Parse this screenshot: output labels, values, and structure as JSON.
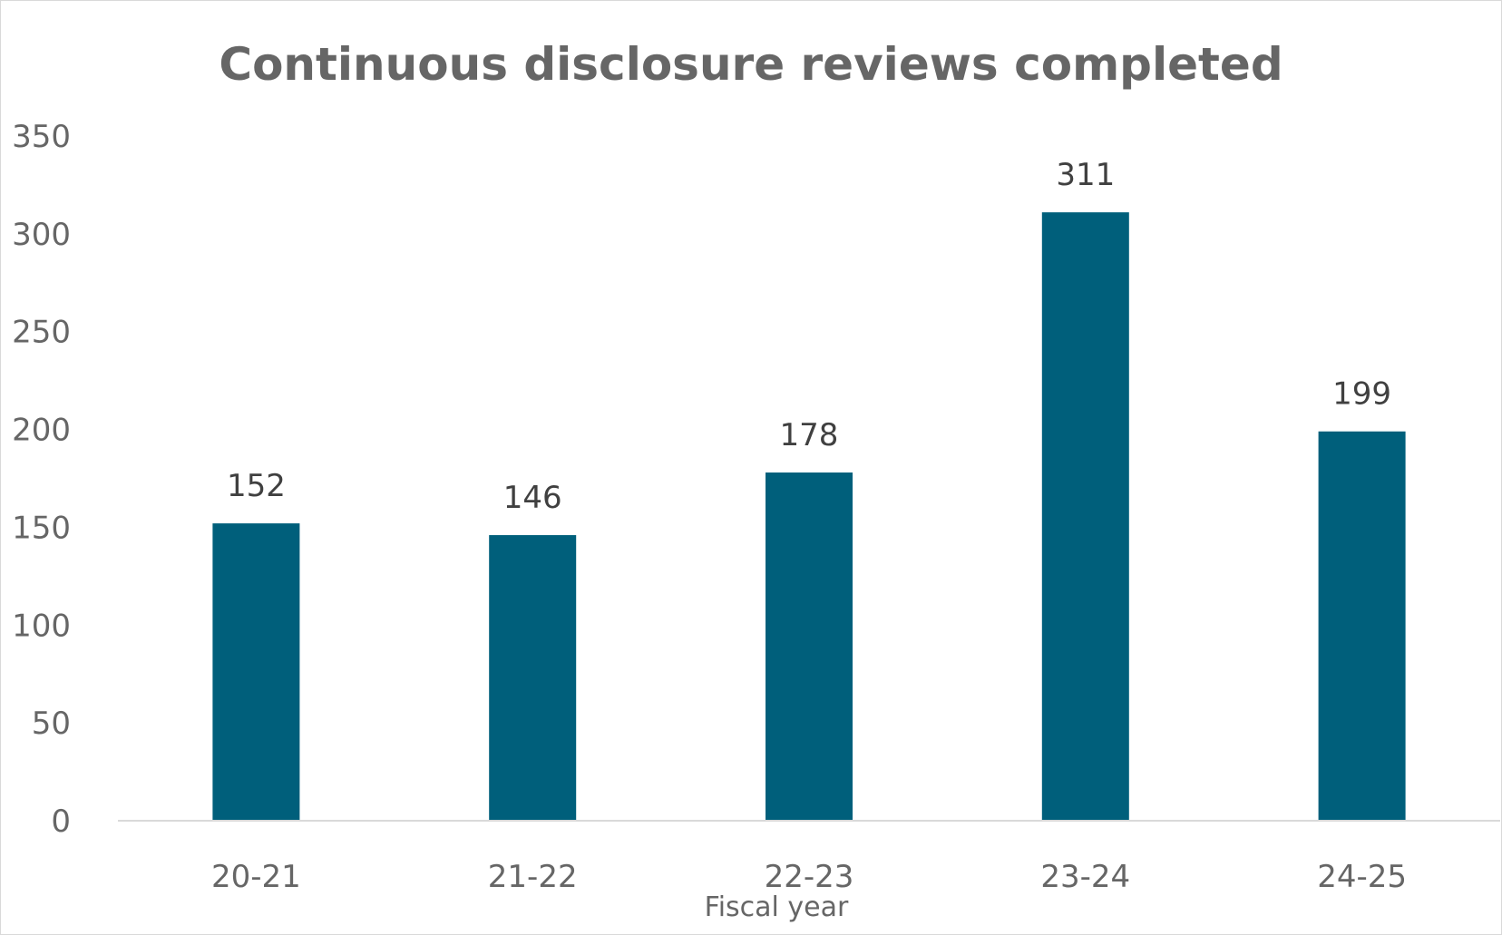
{
  "chart_data": {
    "type": "bar",
    "title": "Continuous disclosure reviews completed",
    "xlabel": "Fiscal year",
    "ylabel": "",
    "categories": [
      "20-21",
      "21-22",
      "22-23",
      "23-24",
      "24-25"
    ],
    "values": [
      152,
      146,
      178,
      311,
      199
    ],
    "data_labels": [
      "152",
      "146",
      "178",
      "311",
      "199"
    ],
    "ylim": [
      0,
      350
    ],
    "yticks": [
      "0",
      "50",
      "100",
      "150",
      "200",
      "250",
      "300",
      "350"
    ],
    "grid": false,
    "legend": "none",
    "bar_color": "#005F7B",
    "axis_color": "#d9d9d9"
  }
}
